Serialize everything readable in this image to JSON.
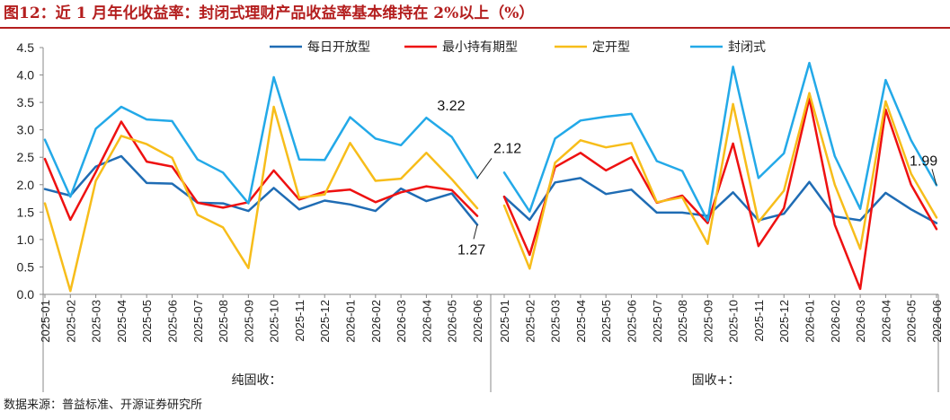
{
  "title": "图12：近 1 月年化收益率：封闭式理财产品收益率基本维持在 2%以上（%）",
  "source": "数据来源：普益标准、开源证券研究所",
  "chart_data": {
    "type": "line",
    "ylim": [
      0,
      4.5
    ],
    "yticks": [
      "0.0",
      "0.5",
      "1.0",
      "1.5",
      "2.0",
      "2.5",
      "3.0",
      "3.5",
      "4.0",
      "4.5"
    ],
    "categories": [
      "2025-01",
      "2025-02",
      "2025-03",
      "2025-04",
      "2025-05",
      "2025-06",
      "2025-07",
      "2025-08",
      "2025-09",
      "2025-10",
      "2025-11",
      "2025-12",
      "2026-01",
      "2026-02",
      "2026-03",
      "2026-04",
      "2026-05",
      "2026-06"
    ],
    "legend_position": "top",
    "series_meta": [
      {
        "name": "每日开放型",
        "color": "#1f6cb4"
      },
      {
        "name": "最小持有期型",
        "color": "#ee1111"
      },
      {
        "name": "定开型",
        "color": "#f7bd1a"
      },
      {
        "name": "封闭式",
        "color": "#23a9e8"
      }
    ],
    "groups": [
      {
        "label": "纯固收：",
        "series": [
          {
            "name": "每日开放型",
            "values": [
              1.92,
              1.8,
              2.33,
              2.52,
              2.03,
              2.02,
              1.67,
              1.66,
              1.52,
              1.94,
              1.55,
              1.71,
              1.64,
              1.52,
              1.93,
              1.7,
              1.84,
              1.27
            ]
          },
          {
            "name": "最小持有期型",
            "values": [
              2.47,
              1.36,
              2.23,
              3.15,
              2.42,
              2.33,
              1.67,
              1.58,
              1.68,
              2.26,
              1.73,
              1.87,
              1.91,
              1.68,
              1.86,
              1.97,
              1.9,
              1.43
            ]
          },
          {
            "name": "定开型",
            "values": [
              1.66,
              0.06,
              2.07,
              2.89,
              2.74,
              2.49,
              1.45,
              1.22,
              0.48,
              3.42,
              1.76,
              1.82,
              2.76,
              2.07,
              2.11,
              2.58,
              2.1,
              1.57
            ]
          },
          {
            "name": "封闭式",
            "values": [
              2.82,
              1.78,
              3.02,
              3.42,
              3.19,
              3.16,
              2.46,
              2.22,
              1.66,
              3.96,
              2.46,
              2.45,
              3.23,
              2.84,
              2.72,
              3.22,
              2.87,
              2.12
            ]
          }
        ],
        "annotations": [
          {
            "text": "3.22",
            "series": "封闭式",
            "index": 15
          },
          {
            "text": "2.12",
            "series": "封闭式",
            "index": 17
          },
          {
            "text": "1.27",
            "series": "每日开放型",
            "index": 17
          }
        ]
      },
      {
        "label": "固收+：",
        "series": [
          {
            "name": "每日开放型",
            "values": [
              1.78,
              1.36,
              2.04,
              2.12,
              1.83,
              1.91,
              1.49,
              1.49,
              1.43,
              1.86,
              1.35,
              1.47,
              2.05,
              1.42,
              1.35,
              1.85,
              1.55,
              1.3
            ]
          },
          {
            "name": "最小持有期型",
            "values": [
              1.78,
              0.72,
              2.32,
              2.58,
              2.26,
              2.5,
              1.67,
              1.8,
              1.3,
              2.75,
              0.88,
              1.57,
              3.57,
              1.27,
              0.1,
              3.37,
              2.0,
              1.19
            ]
          },
          {
            "name": "定开型",
            "values": [
              1.62,
              0.47,
              2.4,
              2.81,
              2.68,
              2.76,
              1.68,
              1.77,
              0.92,
              3.47,
              1.32,
              1.89,
              3.67,
              2.0,
              0.83,
              3.52,
              2.2,
              1.4
            ]
          },
          {
            "name": "封闭式",
            "values": [
              2.22,
              1.51,
              2.84,
              3.17,
              3.24,
              3.29,
              2.43,
              2.25,
              1.34,
              4.15,
              2.12,
              2.57,
              4.22,
              2.52,
              1.56,
              3.91,
              2.81,
              1.99
            ]
          }
        ],
        "annotations": [
          {
            "text": "1.99",
            "series": "封闭式",
            "index": 17
          }
        ]
      }
    ]
  }
}
